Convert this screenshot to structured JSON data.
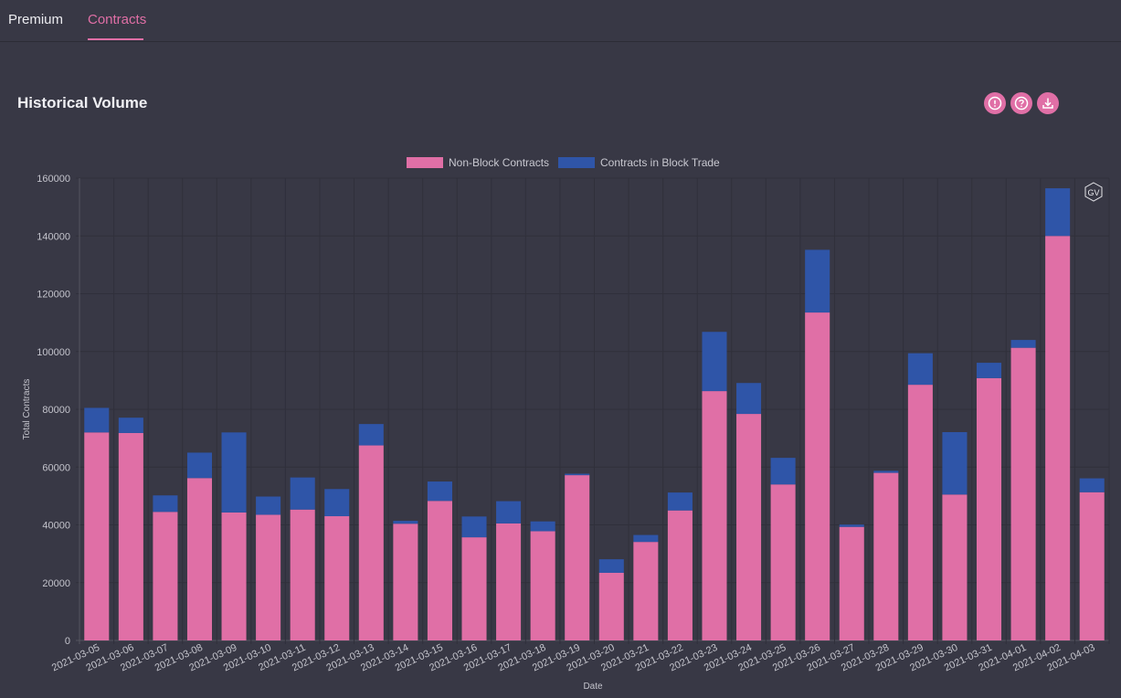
{
  "tabs": [
    {
      "label": "Premium",
      "active": false
    },
    {
      "label": "Contracts",
      "active": true
    }
  ],
  "page_title": "Historical Volume",
  "actions": [
    {
      "icon": "info-icon"
    },
    {
      "icon": "help-icon"
    },
    {
      "icon": "download-icon"
    }
  ],
  "watermark": "GV",
  "colors": {
    "non_block": "#e06fa6",
    "block": "#2f55a8",
    "accent": "#e06fa6"
  },
  "chart_data": {
    "type": "bar",
    "stacked": true,
    "xlabel": "Date",
    "ylabel": "Total Contracts",
    "ylim": [
      0,
      160000
    ],
    "yticks": [
      0,
      20000,
      40000,
      60000,
      80000,
      100000,
      120000,
      140000,
      160000
    ],
    "legend_position": "top-center",
    "grid": true,
    "categories": [
      "2021-03-05",
      "2021-03-06",
      "2021-03-07",
      "2021-03-08",
      "2021-03-09",
      "2021-03-10",
      "2021-03-11",
      "2021-03-12",
      "2021-03-13",
      "2021-03-14",
      "2021-03-15",
      "2021-03-16",
      "2021-03-17",
      "2021-03-18",
      "2021-03-19",
      "2021-03-20",
      "2021-03-21",
      "2021-03-22",
      "2021-03-23",
      "2021-03-24",
      "2021-03-25",
      "2021-03-26",
      "2021-03-27",
      "2021-03-28",
      "2021-03-29",
      "2021-03-30",
      "2021-03-31",
      "2021-04-01",
      "2021-04-02",
      "2021-04-03"
    ],
    "series": [
      {
        "name": "Non-Block Contracts",
        "values": [
          72000,
          71800,
          44500,
          56200,
          44300,
          43500,
          45300,
          43000,
          67500,
          40400,
          48300,
          35700,
          40500,
          37800,
          57200,
          23400,
          34100,
          45000,
          86300,
          78400,
          54000,
          113500,
          39300,
          58000,
          88500,
          50500,
          90800,
          101300,
          140000,
          51300
        ]
      },
      {
        "name": "Contracts in Block Trade",
        "values": [
          8500,
          5300,
          5700,
          8800,
          27700,
          6300,
          11100,
          9400,
          7400,
          1000,
          6700,
          7200,
          7700,
          3400,
          500,
          4700,
          2400,
          6200,
          20500,
          10700,
          9200,
          21700,
          800,
          700,
          10900,
          21600,
          5300,
          2700,
          16500,
          4800
        ]
      }
    ]
  }
}
